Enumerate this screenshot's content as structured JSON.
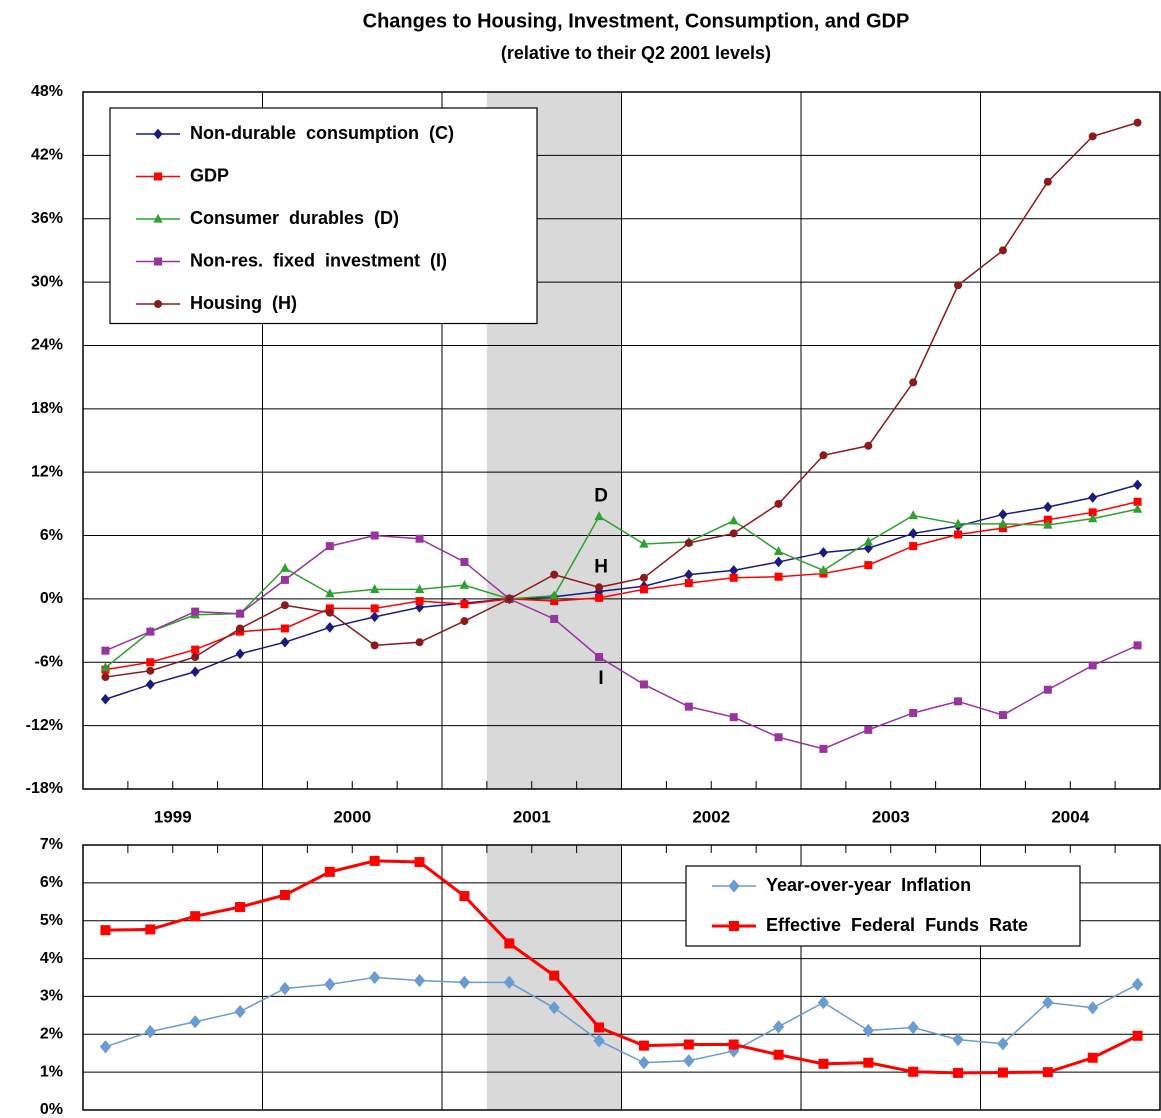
{
  "chart_data": [
    {
      "type": "line",
      "title": "Changes to Housing, Investment, Consumption, and GDP",
      "subtitle": "(relative to their Q2 2001 levels)",
      "categories": [
        "1999",
        null,
        null,
        null,
        "2000",
        null,
        null,
        null,
        "2001",
        null,
        null,
        null,
        "2002",
        null,
        null,
        null,
        "2003",
        null,
        null,
        null,
        "2004",
        null,
        null,
        null
      ],
      "ylim": [
        -18,
        48
      ],
      "yticks": [
        {
          "value": -18,
          "label": "-18%"
        },
        {
          "value": -12,
          "label": "-12%"
        },
        {
          "value": -6,
          "label": "-6%"
        },
        {
          "value": 0,
          "label": "0%"
        },
        {
          "value": 6,
          "label": "6%"
        },
        {
          "value": 12,
          "label": "12%"
        },
        {
          "value": 18,
          "label": "18%"
        },
        {
          "value": 24,
          "label": "24%"
        },
        {
          "value": 30,
          "label": "30%"
        },
        {
          "value": 36,
          "label": "36%"
        },
        {
          "value": 42,
          "label": "42%"
        },
        {
          "value": 48,
          "label": "48%"
        }
      ],
      "grid": true,
      "legend": "upper left",
      "shaded_span": [
        8.5,
        11.5
      ],
      "annotations": [
        "D",
        "H",
        "I"
      ],
      "series": [
        {
          "name": "Non-durable  consumption  (C)",
          "color": "#1a1a80",
          "marker": "diamond",
          "values": [
            -9.5,
            -8.1,
            -6.9,
            -5.2,
            -4.1,
            -2.7,
            -1.7,
            -0.8,
            -0.4,
            0,
            0.2,
            0.7,
            1.2,
            2.3,
            2.7,
            3.5,
            4.4,
            4.8,
            6.2,
            6.9,
            8.0,
            8.7,
            9.6,
            10.8
          ]
        },
        {
          "name": "GDP",
          "color": "#ff0000",
          "marker": "square",
          "values": [
            -6.7,
            -6.0,
            -4.8,
            -3.1,
            -2.8,
            -0.9,
            -0.9,
            -0.2,
            -0.5,
            0,
            -0.2,
            0.1,
            0.9,
            1.5,
            2.0,
            2.1,
            2.4,
            3.2,
            5.0,
            6.1,
            6.7,
            7.5,
            8.2,
            9.2
          ]
        },
        {
          "name": "Consumer  durables  (D)",
          "color": "#2ea02e",
          "marker": "triangle",
          "values": [
            -6.5,
            -3.1,
            -1.5,
            -1.4,
            2.9,
            0.5,
            0.9,
            0.9,
            1.3,
            0,
            0.3,
            7.8,
            5.2,
            5.4,
            7.4,
            4.5,
            2.7,
            5.4,
            7.9,
            7.1,
            7.1,
            7.0,
            7.6,
            8.5
          ]
        },
        {
          "name": "Non-res.  fixed  investment  (I)",
          "color": "#9933a0",
          "marker": "square",
          "values": [
            -4.9,
            -3.1,
            -1.2,
            -1.4,
            1.8,
            5.0,
            6.0,
            5.7,
            3.5,
            0,
            -1.9,
            -5.5,
            -8.1,
            -10.2,
            -11.2,
            -13.1,
            -14.2,
            -12.4,
            -10.8,
            -9.7,
            -11.0,
            -8.6,
            -6.3,
            -4.4
          ]
        },
        {
          "name": "Housing  (H)",
          "color": "#8b1a1a",
          "marker": "circle",
          "values": [
            -7.4,
            -6.8,
            -5.5,
            -2.8,
            -0.6,
            -1.3,
            -4.4,
            -4.1,
            -2.1,
            0,
            2.3,
            1.1,
            2.0,
            5.3,
            6.2,
            9.0,
            13.6,
            14.5,
            20.5,
            29.7,
            33.0,
            39.5,
            43.8,
            45.1
          ]
        }
      ]
    },
    {
      "type": "line",
      "ylim": [
        0,
        7
      ],
      "yticks": [
        {
          "value": 0,
          "label": "0%"
        },
        {
          "value": 1,
          "label": "1%"
        },
        {
          "value": 2,
          "label": "2%"
        },
        {
          "value": 3,
          "label": "3%"
        },
        {
          "value": 4,
          "label": "4%"
        },
        {
          "value": 5,
          "label": "5%"
        },
        {
          "value": 6,
          "label": "6%"
        },
        {
          "value": 7,
          "label": "7%"
        }
      ],
      "grid": true,
      "legend": "upper right",
      "shaded_span": [
        8.5,
        11.5
      ],
      "series": [
        {
          "name": "Year-over-year  Inflation",
          "color": "#6a9bd1",
          "marker": "diamond",
          "values": [
            1.67,
            2.07,
            2.33,
            2.6,
            3.21,
            3.32,
            3.5,
            3.42,
            3.37,
            3.37,
            2.7,
            1.83,
            1.25,
            1.3,
            1.56,
            2.2,
            2.84,
            2.1,
            2.18,
            1.86,
            1.75,
            2.84,
            2.7,
            3.32
          ]
        },
        {
          "name": "Effective  Federal  Funds  Rate",
          "color": "#ff0000",
          "marker": "square",
          "values": [
            4.75,
            4.77,
            5.12,
            5.36,
            5.68,
            6.29,
            6.58,
            6.55,
            5.65,
            4.4,
            3.55,
            2.18,
            1.7,
            1.73,
            1.73,
            1.46,
            1.22,
            1.25,
            1.01,
            0.98,
            0.99,
            1.0,
            1.38,
            1.96
          ]
        }
      ]
    }
  ]
}
